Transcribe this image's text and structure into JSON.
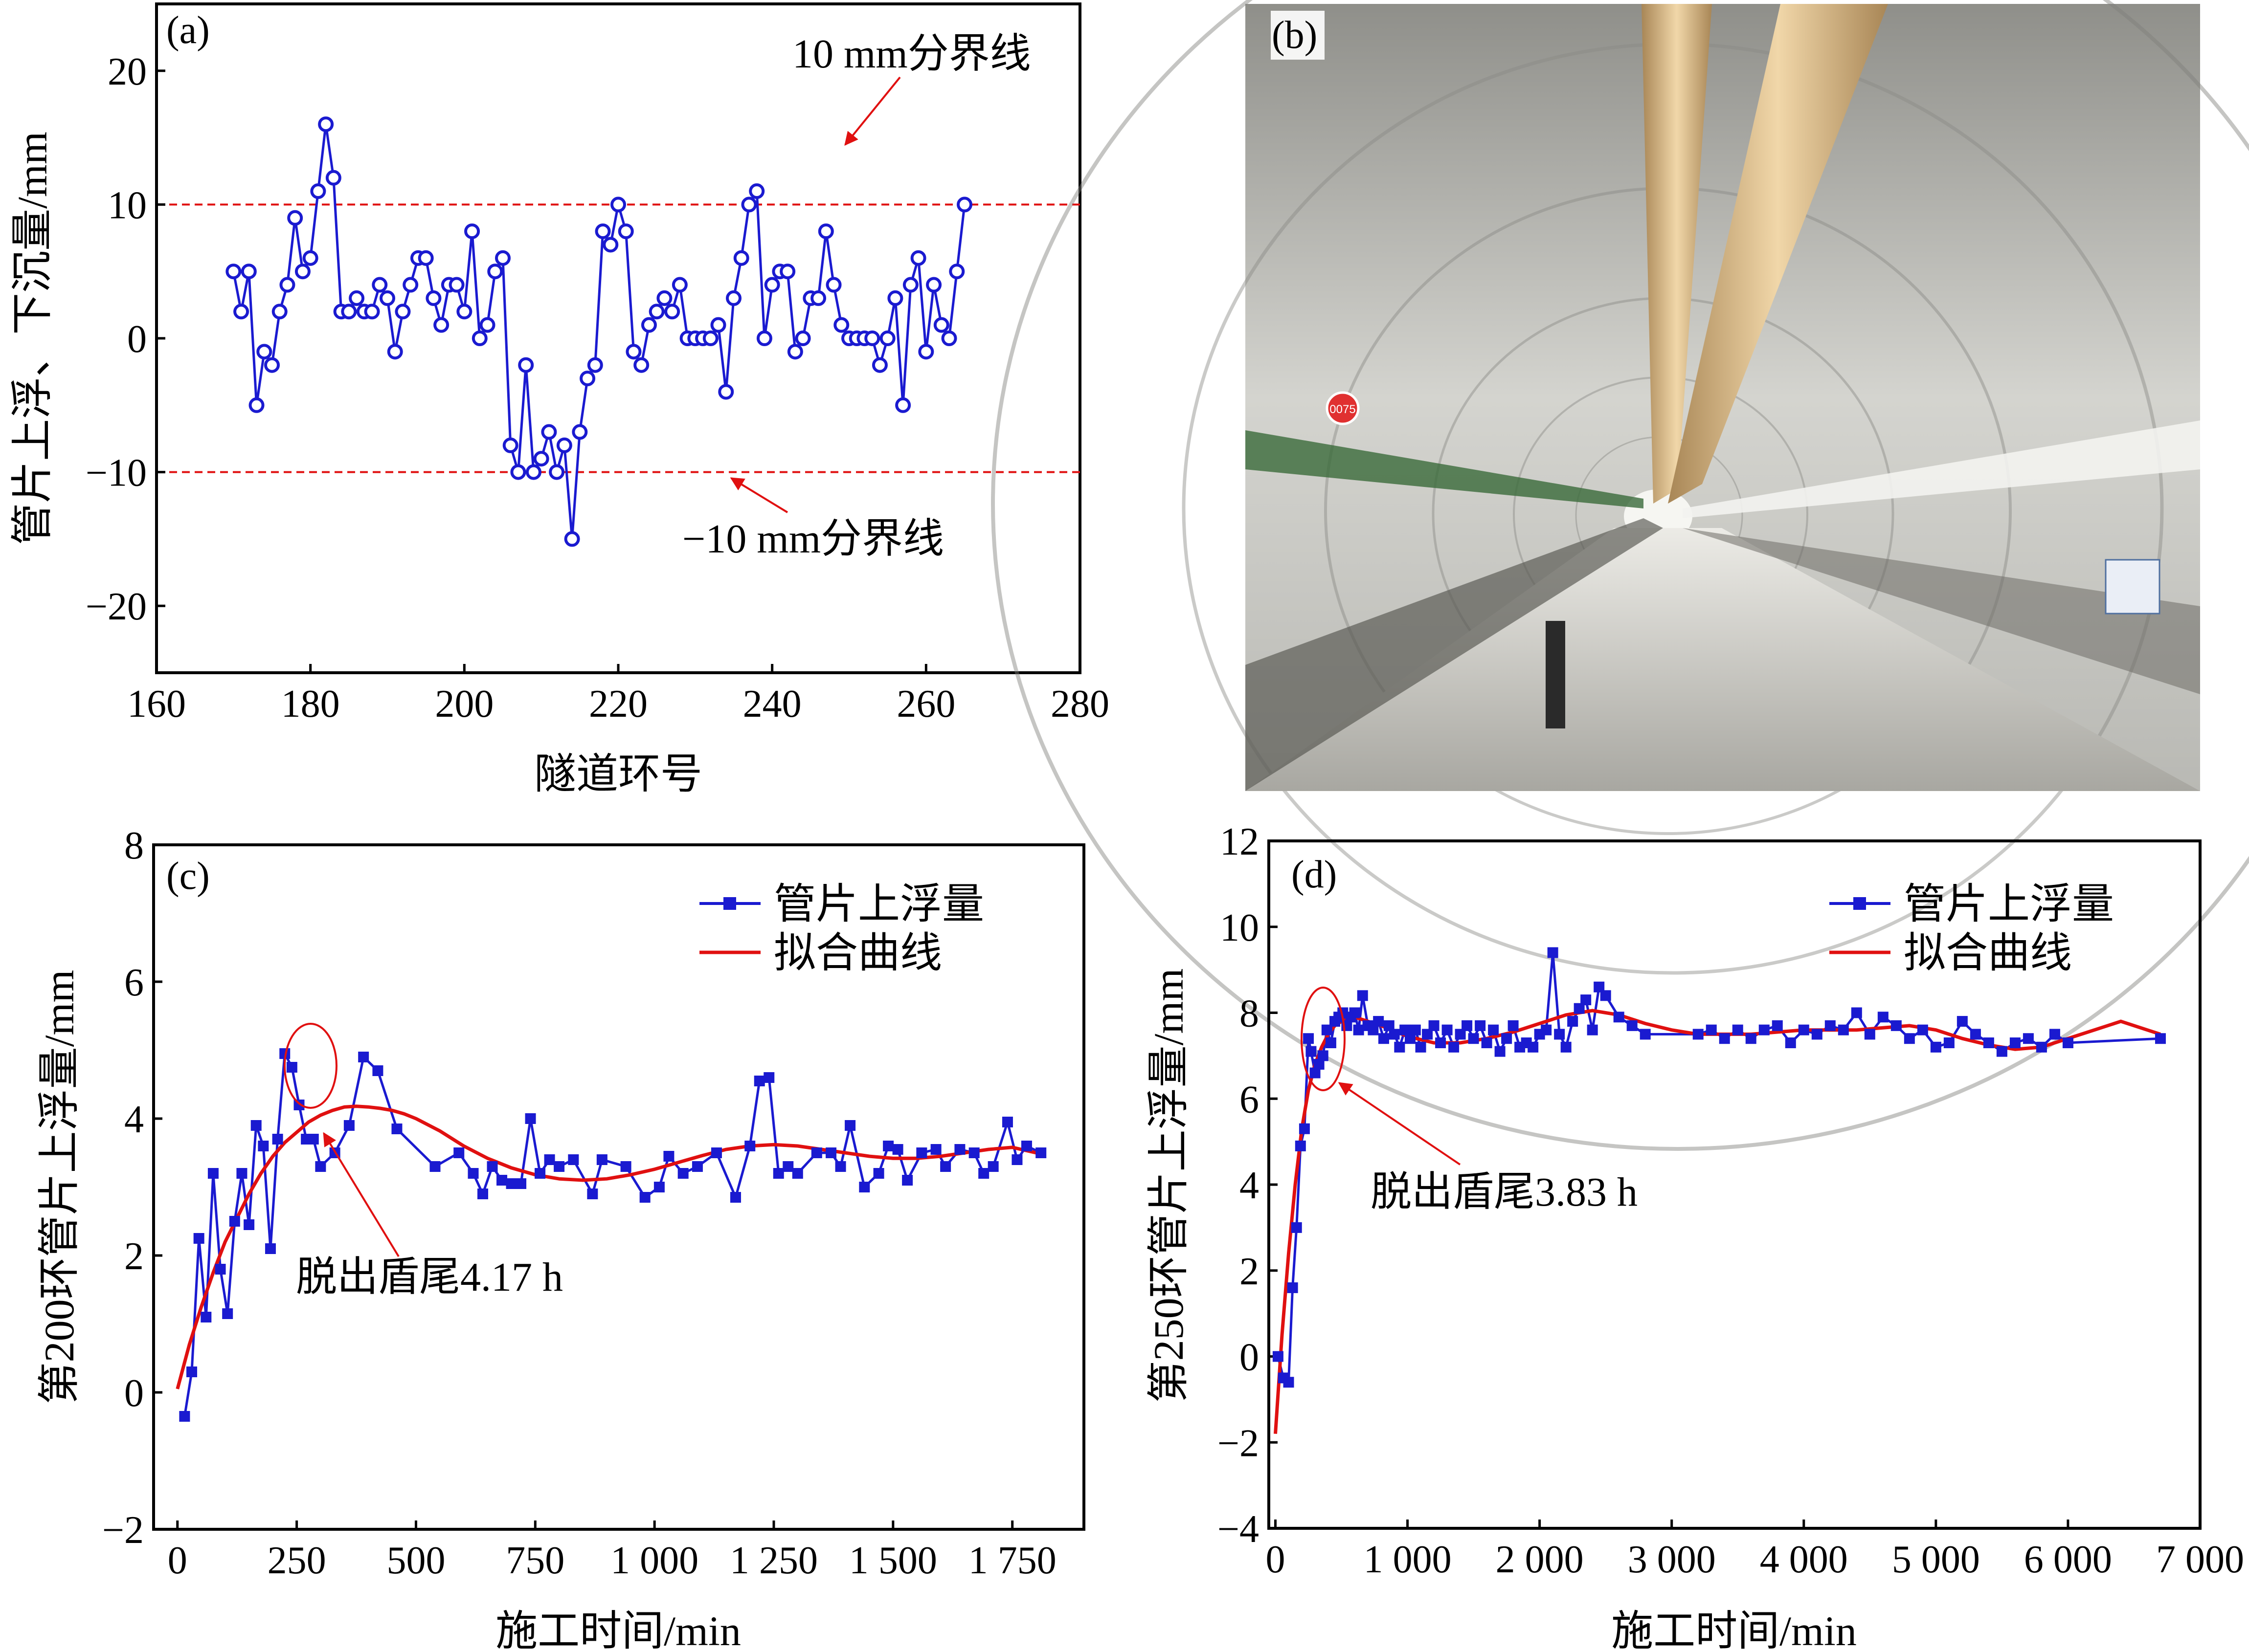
{
  "colors": {
    "series": "#1a1ad0",
    "fit": "#e01010",
    "guide": "#e01010",
    "arrow": "#e01010"
  },
  "chart_data": [
    {
      "panel": "(a)",
      "type": "line",
      "xlabel": "隧道环号",
      "ylabel": "管片上浮、下沉量/mm",
      "xlim": [
        160,
        280
      ],
      "ylim": [
        -25,
        25
      ],
      "xticks": [
        160,
        180,
        200,
        220,
        240,
        260,
        280
      ],
      "yticks": [
        -20,
        -10,
        0,
        10,
        20
      ],
      "xtick_labels": [
        "160",
        "180",
        "200",
        "220",
        "240",
        "260",
        "280"
      ],
      "ytick_labels": [
        "−20",
        "−10",
        "0",
        "10",
        "20"
      ],
      "marker": "circle",
      "guides": [
        10,
        -10
      ],
      "annotations": [
        "10 mm分界线",
        "−10 mm分界线"
      ],
      "series": [
        {
          "name": "管片上浮、下沉量",
          "x": [
            170,
            171,
            172,
            173,
            174,
            175,
            176,
            177,
            178,
            179,
            180,
            181,
            182,
            183,
            184,
            185,
            186,
            187,
            188,
            189,
            190,
            191,
            192,
            193,
            194,
            195,
            196,
            197,
            198,
            199,
            200,
            201,
            202,
            203,
            204,
            205,
            206,
            207,
            208,
            209,
            210,
            211,
            212,
            213,
            214,
            215,
            216,
            217,
            218,
            219,
            220,
            221,
            222,
            223,
            224,
            225,
            226,
            227,
            228,
            229,
            230,
            231,
            232,
            233,
            234,
            235,
            236,
            237,
            238,
            239,
            240,
            241,
            242,
            243,
            244,
            245,
            246,
            247,
            248,
            249,
            250,
            251,
            252,
            253,
            254,
            255,
            256,
            257,
            258,
            259,
            260,
            261,
            262,
            263,
            264,
            265
          ],
          "y": [
            5,
            2,
            5,
            -5,
            -1,
            -2,
            2,
            4,
            9,
            5,
            6,
            11,
            16,
            12,
            2,
            2,
            3,
            2,
            2,
            4,
            3,
            -1,
            2,
            4,
            6,
            6,
            3,
            1,
            4,
            4,
            2,
            8,
            0,
            1,
            5,
            6,
            -8,
            -10,
            -2,
            -10,
            -9,
            -7,
            -10,
            -8,
            -15,
            -7,
            -3,
            -2,
            8,
            7,
            10,
            8,
            -1,
            -2,
            1,
            2,
            3,
            2,
            4,
            0,
            0,
            0,
            0,
            1,
            -4,
            3,
            6,
            10,
            11,
            0,
            4,
            5,
            5,
            -1,
            0,
            3,
            3,
            8,
            4,
            1,
            0,
            0,
            0,
            0,
            -2,
            0,
            3,
            -5,
            4,
            6,
            -1,
            4,
            1,
            0,
            5,
            10
          ]
        }
      ]
    },
    {
      "panel": "(c)",
      "type": "line",
      "xlabel": "施工时间/min",
      "ylabel": "第200环管片上浮量/mm",
      "xlim": [
        -50,
        1900
      ],
      "ylim": [
        -2,
        8
      ],
      "xticks": [
        0,
        250,
        500,
        750,
        1000,
        1250,
        1500,
        1750
      ],
      "yticks": [
        -2,
        0,
        2,
        4,
        6,
        8
      ],
      "xtick_labels": [
        "0",
        "250",
        "500",
        "750",
        "1 000",
        "1 250",
        "1 500",
        "1 750"
      ],
      "ytick_labels": [
        "−2",
        "0",
        "2",
        "4",
        "6",
        "8"
      ],
      "marker": "square",
      "annotation": "脱出盾尾4.17 h",
      "legend": [
        "管片上浮量",
        "拟合曲线"
      ],
      "series": [
        {
          "name": "管片上浮量",
          "x": [
            15,
            30,
            45,
            60,
            75,
            90,
            105,
            120,
            135,
            150,
            165,
            180,
            195,
            210,
            225,
            240,
            255,
            270,
            285,
            300,
            330,
            360,
            390,
            420,
            460,
            540,
            590,
            620,
            640,
            660,
            680,
            700,
            720,
            740,
            760,
            780,
            800,
            830,
            870,
            890,
            940,
            980,
            1010,
            1030,
            1060,
            1090,
            1130,
            1170,
            1200,
            1220,
            1240,
            1260,
            1280,
            1300,
            1340,
            1370,
            1390,
            1410,
            1440,
            1470,
            1490,
            1510,
            1530,
            1560,
            1590,
            1610,
            1640,
            1670,
            1690,
            1710,
            1740,
            1760,
            1780,
            1810
          ],
          "y": [
            -0.35,
            0.3,
            2.25,
            1.1,
            3.2,
            1.8,
            1.15,
            2.5,
            3.2,
            2.45,
            3.9,
            3.6,
            2.1,
            3.7,
            4.95,
            4.75,
            4.2,
            3.7,
            3.7,
            3.3,
            3.5,
            3.9,
            4.9,
            4.7,
            3.85,
            3.3,
            3.5,
            3.2,
            2.9,
            3.3,
            3.1,
            3.05,
            3.05,
            4.0,
            3.2,
            3.4,
            3.3,
            3.4,
            2.9,
            3.4,
            3.3,
            2.85,
            3.0,
            3.45,
            3.2,
            3.3,
            3.5,
            2.85,
            3.6,
            4.55,
            4.6,
            3.2,
            3.3,
            3.2,
            3.5,
            3.5,
            3.3,
            3.9,
            3.0,
            3.2,
            3.6,
            3.55,
            3.1,
            3.5,
            3.55,
            3.3,
            3.55,
            3.5,
            3.2,
            3.3,
            3.95,
            3.4,
            3.6,
            3.5
          ]
        },
        {
          "name": "拟合曲线",
          "x": [
            0,
            25,
            50,
            75,
            100,
            125,
            150,
            175,
            200,
            225,
            250,
            275,
            300,
            325,
            350,
            375,
            400,
            425,
            450,
            475,
            500,
            550,
            600,
            650,
            700,
            750,
            800,
            850,
            900,
            950,
            1000,
            1050,
            1100,
            1150,
            1200,
            1250,
            1300,
            1350,
            1400,
            1450,
            1500,
            1550,
            1600,
            1650,
            1700,
            1750,
            1800
          ],
          "y": [
            0.05,
            0.7,
            1.25,
            1.75,
            2.2,
            2.55,
            2.9,
            3.2,
            3.45,
            3.65,
            3.8,
            3.95,
            4.05,
            4.12,
            4.17,
            4.18,
            4.17,
            4.15,
            4.12,
            4.07,
            4.0,
            3.82,
            3.6,
            3.42,
            3.28,
            3.18,
            3.12,
            3.1,
            3.12,
            3.18,
            3.26,
            3.36,
            3.46,
            3.55,
            3.6,
            3.62,
            3.6,
            3.55,
            3.5,
            3.45,
            3.42,
            3.42,
            3.45,
            3.5,
            3.55,
            3.58,
            3.5
          ]
        }
      ]
    },
    {
      "panel": "(d)",
      "type": "line",
      "xlabel": "施工时间/min",
      "ylabel": "第250环管片上浮量/mm",
      "xlim": [
        -50,
        7000
      ],
      "ylim": [
        -4,
        12
      ],
      "xticks": [
        0,
        1000,
        2000,
        3000,
        4000,
        5000,
        6000,
        7000
      ],
      "yticks": [
        -4,
        -2,
        0,
        2,
        4,
        6,
        8,
        10,
        12
      ],
      "xtick_labels": [
        "0",
        "1 000",
        "2 000",
        "3 000",
        "4 000",
        "5 000",
        "6 000",
        "7 000"
      ],
      "ytick_labels": [
        "−4",
        "−2",
        "0",
        "2",
        "4",
        "6",
        "8",
        "10",
        "12"
      ],
      "marker": "square",
      "annotation": "脱出盾尾3.83 h",
      "legend": [
        "管片上浮量",
        "拟合曲线"
      ],
      "series": [
        {
          "name": "管片上浮量",
          "x": [
            20,
            60,
            100,
            130,
            160,
            190,
            220,
            250,
            270,
            300,
            330,
            360,
            390,
            420,
            450,
            480,
            510,
            540,
            570,
            600,
            630,
            660,
            700,
            740,
            780,
            820,
            860,
            900,
            940,
            980,
            1020,
            1060,
            1100,
            1150,
            1200,
            1250,
            1300,
            1350,
            1400,
            1450,
            1500,
            1550,
            1600,
            1650,
            1700,
            1750,
            1800,
            1850,
            1900,
            1950,
            2000,
            2050,
            2100,
            2150,
            2200,
            2250,
            2300,
            2350,
            2400,
            2450,
            2500,
            2600,
            2700,
            2800,
            3200,
            3300,
            3400,
            3500,
            3600,
            3700,
            3800,
            3900,
            4000,
            4100,
            4200,
            4300,
            4400,
            4500,
            4600,
            4700,
            4800,
            4900,
            5000,
            5100,
            5200,
            5300,
            5400,
            5500,
            5600,
            5700,
            5800,
            5900,
            6000,
            6700
          ],
          "y": [
            0,
            -0.5,
            -0.6,
            1.6,
            3.0,
            4.9,
            5.3,
            7.4,
            7.1,
            6.6,
            6.8,
            7.0,
            7.6,
            7.3,
            7.8,
            7.9,
            8.0,
            7.7,
            7.9,
            8.0,
            7.6,
            8.4,
            7.7,
            7.6,
            7.8,
            7.4,
            7.7,
            7.5,
            7.2,
            7.6,
            7.4,
            7.6,
            7.2,
            7.5,
            7.7,
            7.3,
            7.6,
            7.2,
            7.5,
            7.7,
            7.4,
            7.7,
            7.3,
            7.6,
            7.1,
            7.4,
            7.7,
            7.2,
            7.3,
            7.2,
            7.5,
            7.6,
            9.4,
            7.5,
            7.2,
            7.8,
            8.1,
            8.3,
            7.6,
            8.6,
            8.4,
            7.9,
            7.7,
            7.5,
            7.5,
            7.6,
            7.4,
            7.6,
            7.4,
            7.6,
            7.7,
            7.3,
            7.6,
            7.5,
            7.7,
            7.6,
            8.0,
            7.5,
            7.9,
            7.7,
            7.4,
            7.6,
            7.2,
            7.3,
            7.8,
            7.5,
            7.3,
            7.1,
            7.3,
            7.4,
            7.2,
            7.5,
            7.3,
            7.4
          ]
        },
        {
          "name": "拟合曲线",
          "x": [
            0,
            50,
            100,
            150,
            200,
            250,
            300,
            350,
            400,
            450,
            500,
            600,
            700,
            800,
            1000,
            1200,
            1400,
            1600,
            1800,
            2000,
            2200,
            2400,
            2600,
            2800,
            3000,
            3200,
            3400,
            3600,
            3800,
            4000,
            4200,
            4400,
            4600,
            4800,
            5000,
            5200,
            5400,
            5600,
            5800,
            6000,
            6200,
            6400,
            6600,
            6700
          ],
          "y": [
            -1.8,
            0.5,
            2.4,
            4.0,
            5.3,
            6.2,
            6.8,
            7.2,
            7.5,
            7.7,
            7.8,
            7.9,
            7.8,
            7.7,
            7.45,
            7.3,
            7.3,
            7.4,
            7.55,
            7.75,
            7.95,
            8.05,
            7.95,
            7.75,
            7.6,
            7.5,
            7.5,
            7.5,
            7.55,
            7.6,
            7.6,
            7.6,
            7.65,
            7.7,
            7.6,
            7.4,
            7.25,
            7.15,
            7.2,
            7.4,
            7.6,
            7.8,
            7.6,
            7.5
          ]
        }
      ]
    }
  ],
  "photo": {
    "panel": "(b)",
    "sign_text": "0075"
  }
}
